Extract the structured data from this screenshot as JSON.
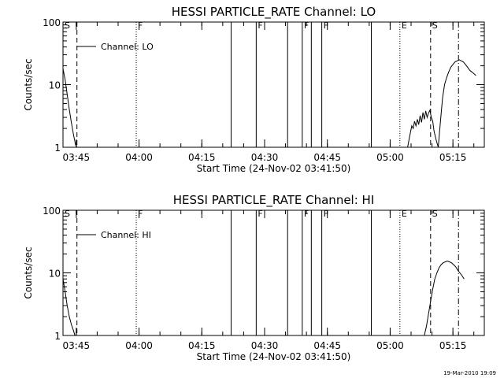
{
  "footer": {
    "stamp": "19-Mar-2010 19:09"
  },
  "chart_data": [
    {
      "type": "line",
      "title": "HESSI PARTICLE_RATE Channel: LO",
      "xlabel": "Start Time (24-Nov-02 03:41:50)",
      "ylabel": "Counts/sec",
      "yscale": "log",
      "ylim": [
        1,
        100
      ],
      "xlim": [
        "03:41:50",
        "05:22:30"
      ],
      "x_ticks": [
        "03:45",
        "04:00",
        "04:15",
        "04:30",
        "04:45",
        "05:00",
        "05:15"
      ],
      "y_ticks": [
        "1",
        "10",
        "100"
      ],
      "legend": "top-left",
      "grid": false,
      "series": [
        {
          "name": "Channel: LO",
          "x": [
            "03:41:50",
            "03:42:20",
            "03:42:50",
            "03:43:20",
            "03:43:50",
            "03:44:20",
            "03:44:50",
            "03:45:10",
            "05:04:10",
            "05:04:40",
            "05:05:10",
            "05:05:30",
            "05:05:50",
            "05:06:10",
            "05:06:30",
            "05:06:50",
            "05:07:10",
            "05:07:30",
            "05:07:50",
            "05:08:10",
            "05:08:30",
            "05:08:50",
            "05:09:10",
            "05:09:30",
            "05:09:50",
            "05:10:10",
            "05:10:30",
            "05:11:00",
            "05:11:30",
            "05:12:00",
            "05:12:30",
            "05:13:00",
            "05:13:30",
            "05:14:00",
            "05:14:30",
            "05:15:00",
            "05:15:30",
            "05:16:00",
            "05:16:30",
            "05:17:00",
            "05:17:30",
            "05:18:00",
            "05:18:30",
            "05:19:00",
            "05:19:30",
            "05:20:00",
            "05:20:30"
          ],
          "y": [
            18,
            12,
            7,
            4,
            2.5,
            1.6,
            1.1,
            1,
            1,
            1.5,
            2.2,
            2,
            2.6,
            2.2,
            2.8,
            2.3,
            3.2,
            2.5,
            3.6,
            2.8,
            3.8,
            3,
            3.5,
            3.9,
            3,
            2.6,
            1.8,
            1.3,
            1,
            2.5,
            6,
            10,
            13,
            16,
            19,
            21,
            23,
            24,
            25,
            24,
            23,
            21,
            19,
            17,
            16,
            15,
            14
          ]
        }
      ],
      "markers": [
        {
          "time": "03:41:50",
          "style": "dashed",
          "label": "S"
        },
        {
          "time": "03:45:10",
          "style": "dashed",
          "label": ""
        },
        {
          "time": "03:59:20",
          "style": "dotted",
          "label": "F"
        },
        {
          "time": "04:22:00",
          "style": "solid",
          "label": ""
        },
        {
          "time": "04:28:00",
          "style": "solid",
          "label": "F"
        },
        {
          "time": "04:35:30",
          "style": "solid",
          "label": ""
        },
        {
          "time": "04:39:00",
          "style": "solid",
          "label": "F"
        },
        {
          "time": "04:41:10",
          "style": "solid",
          "label": ""
        },
        {
          "time": "04:43:40",
          "style": "solid",
          "label": "F"
        },
        {
          "time": "04:55:30",
          "style": "solid",
          "label": ""
        },
        {
          "time": "05:02:20",
          "style": "dotted",
          "label": "E"
        },
        {
          "time": "05:09:40",
          "style": "dashed",
          "label": "S"
        },
        {
          "time": "05:16:20",
          "style": "dash-dot",
          "label": ""
        }
      ]
    },
    {
      "type": "line",
      "title": "HESSI PARTICLE_RATE Channel: HI",
      "xlabel": "Start Time (24-Nov-02 03:41:50)",
      "ylabel": "Counts/sec",
      "yscale": "log",
      "ylim": [
        1,
        100
      ],
      "xlim": [
        "03:41:50",
        "05:22:30"
      ],
      "x_ticks": [
        "03:45",
        "04:00",
        "04:15",
        "04:30",
        "04:45",
        "05:00",
        "05:15"
      ],
      "y_ticks": [
        "1",
        "10",
        "100"
      ],
      "legend": "top-left",
      "grid": false,
      "series": [
        {
          "name": "Channel: HI",
          "x": [
            "03:41:50",
            "03:42:20",
            "03:42:50",
            "03:43:20",
            "03:43:50",
            "03:44:20",
            "03:44:40",
            "05:08:10",
            "05:08:40",
            "05:09:10",
            "05:09:40",
            "05:10:10",
            "05:10:40",
            "05:11:10",
            "05:11:40",
            "05:12:10",
            "05:12:40",
            "05:13:10",
            "05:13:40",
            "05:14:10",
            "05:14:40",
            "05:15:10",
            "05:15:40",
            "05:16:10",
            "05:16:40",
            "05:17:10",
            "05:17:40"
          ],
          "y": [
            8,
            5,
            3,
            2,
            1.5,
            1.2,
            1,
            1,
            1.4,
            2.2,
            3.5,
            5.5,
            8,
            10,
            12,
            13.5,
            14.5,
            15,
            15.5,
            15,
            14.5,
            13.5,
            12.5,
            11,
            10,
            9,
            8
          ]
        }
      ],
      "markers": [
        {
          "time": "03:41:50",
          "style": "dashed",
          "label": "S"
        },
        {
          "time": "03:45:10",
          "style": "dashed",
          "label": ""
        },
        {
          "time": "03:59:20",
          "style": "dotted",
          "label": "F"
        },
        {
          "time": "04:22:00",
          "style": "solid",
          "label": ""
        },
        {
          "time": "04:28:00",
          "style": "solid",
          "label": "F"
        },
        {
          "time": "04:35:30",
          "style": "solid",
          "label": ""
        },
        {
          "time": "04:39:00",
          "style": "solid",
          "label": "F"
        },
        {
          "time": "04:41:10",
          "style": "solid",
          "label": ""
        },
        {
          "time": "04:43:40",
          "style": "solid",
          "label": "F"
        },
        {
          "time": "04:55:30",
          "style": "solid",
          "label": ""
        },
        {
          "time": "05:02:20",
          "style": "dotted",
          "label": "E"
        },
        {
          "time": "05:09:40",
          "style": "dashed",
          "label": "S"
        },
        {
          "time": "05:16:20",
          "style": "dash-dot",
          "label": ""
        }
      ]
    }
  ]
}
